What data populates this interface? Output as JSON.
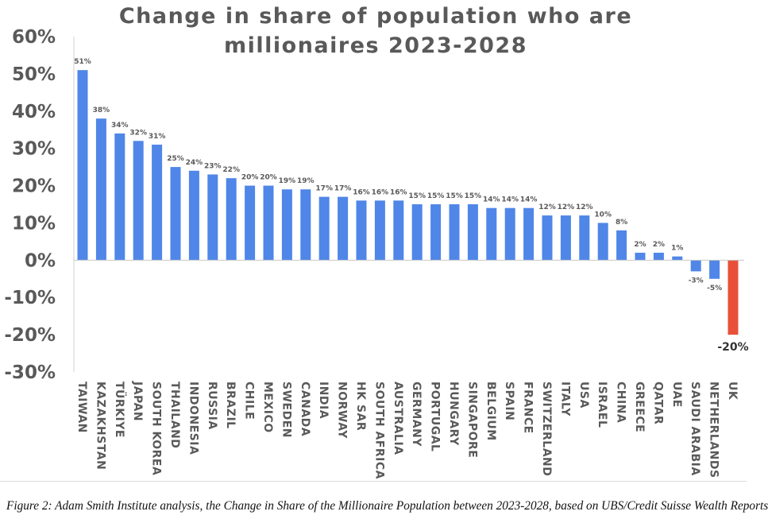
{
  "chart_data": {
    "type": "bar",
    "title_lines": [
      "Change in share of population who are",
      "millionaires 2023-2028"
    ],
    "xlabel": "",
    "ylabel": "",
    "ylim": [
      -30,
      60
    ],
    "yticks": [
      60,
      50,
      40,
      30,
      20,
      10,
      0,
      -10,
      -20,
      -30
    ],
    "ytick_labels": [
      "60%",
      "50%",
      "40%",
      "30%",
      "20%",
      "10%",
      "0%",
      "-10%",
      "-20%",
      "-30%"
    ],
    "categories": [
      "Taiwan",
      "Kazakhstan",
      "Türkiye",
      "Japan",
      "South Korea",
      "Thailand",
      "Indonesia",
      "Russia",
      "Brazil",
      "Chile",
      "Mexico",
      "Sweden",
      "Canada",
      "India",
      "Norway",
      "HK SAR",
      "South Africa",
      "Australia",
      "Germany",
      "Portugal",
      "Hungary",
      "Singapore",
      "Belgium",
      "Spain",
      "France",
      "Switzerland",
      "Italy",
      "USA",
      "Israel",
      "China",
      "Greece",
      "Qatar",
      "UAE",
      "Saudi Arabia",
      "Netherlands",
      "UK"
    ],
    "values": [
      51,
      38,
      34,
      32,
      31,
      25,
      24,
      23,
      22,
      20,
      20,
      19,
      19,
      17,
      17,
      16,
      16,
      16,
      15,
      15,
      15,
      15,
      14,
      14,
      14,
      12,
      12,
      12,
      10,
      8,
      2,
      2,
      1,
      -3,
      -5,
      -20
    ],
    "value_labels": [
      "51%",
      "38%",
      "34%",
      "32%",
      "31%",
      "25%",
      "24%",
      "23%",
      "22%",
      "20%",
      "20%",
      "19%",
      "19%",
      "17%",
      "17%",
      "16%",
      "16%",
      "16%",
      "15%",
      "15%",
      "15%",
      "15%",
      "14%",
      "14%",
      "14%",
      "12%",
      "12%",
      "12%",
      "10%",
      "8%",
      "2%",
      "2%",
      "1%",
      "-3%",
      "-5%",
      "-20%"
    ],
    "bar_color": "#4f86e8",
    "highlight_color": "#e8503a",
    "highlight_category": "UK"
  },
  "caption": "Figure 2: Adam Smith Institute analysis, the Change in Share of the Millionaire Population between 2023-2028, based on UBS/Credit Suisse Wealth Reports"
}
